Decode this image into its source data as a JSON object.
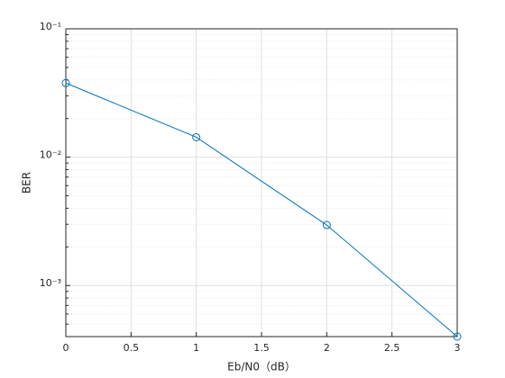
{
  "chart_data": {
    "type": "line",
    "x_label": "Eb/N0（dB）",
    "y_label": "BER",
    "x": [
      0,
      1,
      2,
      3
    ],
    "series": [
      {
        "color": "#0072bd",
        "marker": "circle",
        "values": [
          0.0378,
          0.0143,
          0.00296,
          0.0004
        ]
      }
    ],
    "xlim": [
      0,
      3
    ],
    "xticks": [
      0,
      0.5,
      1,
      1.5,
      2,
      2.5,
      3
    ],
    "ylim": [
      0.0004,
      0.1
    ],
    "y_scale": "log",
    "yticks": [
      {
        "value": 0.001,
        "label": "10⁻³"
      },
      {
        "value": 0.01,
        "label": "10⁻²"
      },
      {
        "value": 0.1,
        "label": "10⁻¹"
      }
    ],
    "grid": true,
    "minor_grid": true
  }
}
